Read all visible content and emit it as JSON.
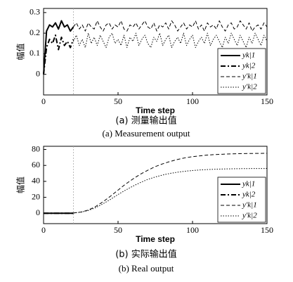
{
  "chart_data": [
    {
      "type": "line",
      "ylabel": "幅值",
      "xlabel": "Time step",
      "caption_cn": "(a) 测量输出值",
      "caption_en": "(a) Measurement output",
      "xlim": [
        0,
        150
      ],
      "ylim": [
        -0.1,
        0.32
      ],
      "xticks": [
        0,
        50,
        100,
        150
      ],
      "yticks": [
        0,
        0.1,
        0.2,
        0.3
      ],
      "vline": 20,
      "legend": "lower right",
      "x": [
        0,
        2,
        4,
        6,
        8,
        10,
        12,
        14,
        16,
        18,
        20,
        22,
        24,
        26,
        28,
        30,
        32,
        34,
        36,
        38,
        40,
        42,
        44,
        46,
        48,
        50,
        52,
        54,
        56,
        58,
        60,
        62,
        64,
        66,
        68,
        70,
        72,
        74,
        76,
        78,
        80,
        82,
        84,
        86,
        88,
        90,
        92,
        94,
        96,
        98,
        100,
        102,
        104,
        106,
        108,
        110,
        112,
        114,
        116,
        118,
        120,
        122,
        124,
        126,
        128,
        130,
        132,
        134,
        136,
        138,
        140,
        142,
        144,
        146,
        148,
        150
      ],
      "series": [
        {
          "name": "yk|1",
          "color": "#000000",
          "dash": "solid",
          "width": 2,
          "values": [
            0,
            0.21,
            0.24,
            0.23,
            0.25,
            0.22,
            0.26,
            0.23,
            0.24,
            0.21,
            0.23,
            null,
            null,
            null,
            null,
            null,
            null,
            null,
            null,
            null,
            null,
            null,
            null,
            null,
            null,
            null,
            null,
            null,
            null,
            null,
            null,
            null,
            null,
            null,
            null,
            null,
            null,
            null,
            null,
            null,
            null,
            null,
            null,
            null,
            null,
            null,
            null,
            null,
            null,
            null,
            null,
            null,
            null,
            null,
            null,
            null,
            null,
            null,
            null,
            null,
            null,
            null,
            null,
            null,
            null,
            null,
            null,
            null,
            null,
            null,
            null,
            null,
            null,
            null,
            null,
            null
          ]
        },
        {
          "name": "yk|2",
          "color": "#000000",
          "dash": "dashdot",
          "width": 2,
          "values": [
            0,
            0.13,
            0.17,
            0.15,
            0.19,
            0.12,
            0.18,
            0.14,
            0.16,
            0.13,
            0.17,
            null,
            null,
            null,
            null,
            null,
            null,
            null,
            null,
            null,
            null,
            null,
            null,
            null,
            null,
            null,
            null,
            null,
            null,
            null,
            null,
            null,
            null,
            null,
            null,
            null,
            null,
            null,
            null,
            null,
            null,
            null,
            null,
            null,
            null,
            null,
            null,
            null,
            null,
            null,
            null,
            null,
            null,
            null,
            null,
            null,
            null,
            null,
            null,
            null,
            null,
            null,
            null,
            null,
            null,
            null,
            null,
            null,
            null,
            null,
            null,
            null,
            null,
            null,
            null,
            null
          ]
        },
        {
          "name": "y′k|1",
          "color": "#000000",
          "dash": "dashed",
          "width": 1,
          "values": [
            null,
            null,
            null,
            null,
            null,
            null,
            null,
            null,
            null,
            null,
            0.23,
            0.25,
            0.22,
            0.24,
            0.21,
            0.25,
            0.23,
            0.22,
            0.26,
            0.23,
            0.21,
            0.24,
            0.25,
            0.22,
            0.24,
            0.23,
            0.26,
            0.22,
            0.21,
            0.24,
            0.23,
            0.25,
            0.22,
            0.24,
            0.26,
            0.23,
            0.22,
            0.25,
            0.21,
            0.24,
            0.23,
            0.25,
            0.22,
            0.26,
            0.24,
            0.21,
            0.23,
            0.25,
            0.22,
            0.24,
            0.23,
            0.26,
            0.22,
            0.24,
            0.21,
            0.25,
            0.23,
            0.24,
            0.22,
            0.26,
            0.23,
            0.21,
            0.24,
            0.25,
            0.22,
            0.23,
            0.26,
            0.24,
            0.22,
            0.25,
            0.21,
            0.23,
            0.24,
            0.22,
            0.25,
            0.23
          ]
        },
        {
          "name": "y′k|2",
          "color": "#000000",
          "dash": "dotted",
          "width": 1,
          "values": [
            null,
            null,
            null,
            null,
            null,
            null,
            null,
            null,
            null,
            null,
            0.16,
            0.19,
            0.14,
            0.17,
            0.13,
            0.2,
            0.15,
            0.18,
            0.14,
            0.19,
            0.16,
            0.13,
            0.18,
            0.2,
            0.15,
            0.17,
            0.14,
            0.19,
            0.13,
            0.18,
            0.16,
            0.2,
            0.14,
            0.17,
            0.19,
            0.15,
            0.13,
            0.18,
            0.16,
            0.2,
            0.14,
            0.17,
            0.19,
            0.13,
            0.16,
            0.18,
            0.15,
            0.2,
            0.14,
            0.17,
            0.19,
            0.13,
            0.16,
            0.18,
            0.15,
            0.2,
            0.14,
            0.17,
            0.19,
            0.16,
            0.13,
            0.18,
            0.15,
            0.2,
            0.17,
            0.14,
            0.19,
            0.16,
            0.13,
            0.18,
            0.15,
            0.2,
            0.17,
            0.14,
            0.19,
            0.16
          ]
        }
      ]
    },
    {
      "type": "line",
      "ylabel": "幅值",
      "xlabel": "Time step",
      "caption_cn": "(b) 实际输出值",
      "caption_en": "(b) Real output",
      "xlim": [
        0,
        150
      ],
      "ylim": [
        -13,
        84
      ],
      "xticks": [
        0,
        50,
        100,
        150
      ],
      "yticks": [
        0,
        20,
        40,
        60,
        80
      ],
      "vline": 20,
      "legend": "lower right",
      "x": [
        0,
        5,
        10,
        15,
        20,
        25,
        30,
        35,
        40,
        45,
        50,
        55,
        60,
        65,
        70,
        75,
        80,
        85,
        90,
        95,
        100,
        105,
        110,
        115,
        120,
        125,
        130,
        135,
        140,
        145,
        150
      ],
      "series": [
        {
          "name": "yk|1",
          "color": "#000000",
          "dash": "solid",
          "width": 2,
          "values": [
            0,
            0,
            0,
            0,
            0,
            null,
            null,
            null,
            null,
            null,
            null,
            null,
            null,
            null,
            null,
            null,
            null,
            null,
            null,
            null,
            null,
            null,
            null,
            null,
            null,
            null,
            null,
            null,
            null,
            null,
            null
          ]
        },
        {
          "name": "yk|2",
          "color": "#000000",
          "dash": "dashdot",
          "width": 2,
          "values": [
            0,
            0,
            0,
            0,
            0,
            null,
            null,
            null,
            null,
            null,
            null,
            null,
            null,
            null,
            null,
            null,
            null,
            null,
            null,
            null,
            null,
            null,
            null,
            null,
            null,
            null,
            null,
            null,
            null,
            null,
            null
          ]
        },
        {
          "name": "y′k|1",
          "color": "#000000",
          "dash": "dashed",
          "width": 1,
          "values": [
            null,
            null,
            null,
            null,
            0.3,
            1.5,
            4,
            8.5,
            14.5,
            21.5,
            29,
            36.5,
            43,
            49,
            54,
            58.5,
            62,
            65,
            67.5,
            69.5,
            71,
            72,
            73,
            73.6,
            74,
            74.4,
            74.7,
            74.9,
            75,
            75.1,
            75.2
          ]
        },
        {
          "name": "y′k|2",
          "color": "#000000",
          "dash": "dotted",
          "width": 1,
          "values": [
            null,
            null,
            null,
            null,
            0.3,
            1.3,
            3.5,
            7,
            12,
            17.5,
            23.5,
            29,
            34,
            38.5,
            42.5,
            45.5,
            48,
            50,
            51.5,
            52.7,
            53.6,
            54.3,
            54.8,
            55.2,
            55.5,
            55.7,
            55.9,
            56,
            56.1,
            56.1,
            56.2
          ]
        }
      ]
    }
  ]
}
